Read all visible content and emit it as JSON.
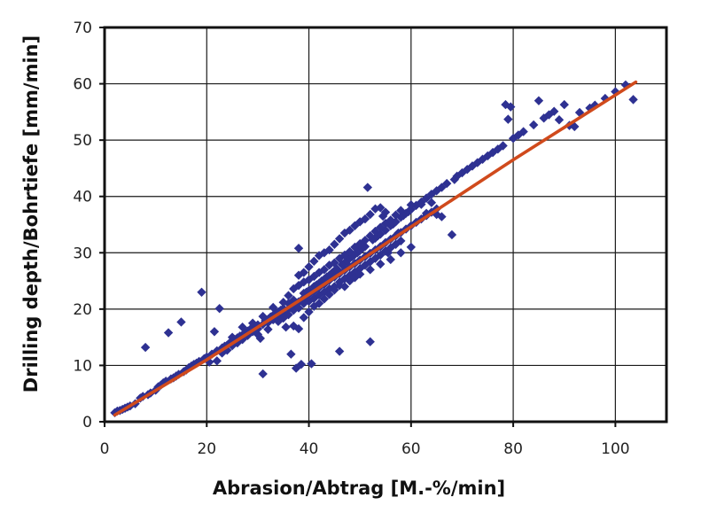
{
  "chart_data": {
    "type": "scatter",
    "title": "",
    "xlabel": "Abrasion/Abtrag [M.-%/min]",
    "ylabel": "Drilling depth/Bohrtiefe [mm/min]",
    "xlim": [
      0,
      110
    ],
    "ylim": [
      0,
      70
    ],
    "xticks": [
      0,
      20,
      40,
      60,
      80,
      100
    ],
    "yticks": [
      0,
      10,
      20,
      30,
      40,
      50,
      60,
      70
    ],
    "grid": true,
    "legend": "none",
    "marker_color": "#2e3192",
    "line_color": "#d04a1c",
    "series": [
      {
        "kind": "points",
        "points": [
          [
            2,
            1.6
          ],
          [
            2.5,
            1.9
          ],
          [
            3,
            2.0
          ],
          [
            3.5,
            2.2
          ],
          [
            4,
            2.4
          ],
          [
            4.5,
            2.6
          ],
          [
            5,
            2.8
          ],
          [
            6,
            3.2
          ],
          [
            7,
            4.2
          ],
          [
            7.5,
            4.5
          ],
          [
            8,
            13.2
          ],
          [
            8.5,
            4.8
          ],
          [
            9,
            5.1
          ],
          [
            10,
            5.6
          ],
          [
            10.5,
            6.2
          ],
          [
            11,
            6.5
          ],
          [
            11.5,
            6.9
          ],
          [
            12,
            7.2
          ],
          [
            12.5,
            15.8
          ],
          [
            13,
            7.6
          ],
          [
            13.5,
            7.8
          ],
          [
            14,
            8.1
          ],
          [
            14.5,
            8.4
          ],
          [
            15,
            17.7
          ],
          [
            15.5,
            8.9
          ],
          [
            16,
            9.2
          ],
          [
            16.5,
            9.6
          ],
          [
            17,
            9.9
          ],
          [
            17.5,
            10.2
          ],
          [
            18,
            10.4
          ],
          [
            18.5,
            10.7
          ],
          [
            19,
            23.0
          ],
          [
            19.5,
            11.2
          ],
          [
            20,
            11.5
          ],
          [
            20.5,
            10.6
          ],
          [
            21,
            12.0
          ],
          [
            21.5,
            16.0
          ],
          [
            22,
            12.6
          ],
          [
            22.5,
            20.1
          ],
          [
            23,
            13.1
          ],
          [
            23.5,
            13.4
          ],
          [
            24,
            13.6
          ],
          [
            24.5,
            14.0
          ],
          [
            25,
            14.3
          ],
          [
            25.5,
            14.6
          ],
          [
            26,
            14.9
          ],
          [
            26.5,
            15.2
          ],
          [
            27,
            15.4
          ],
          [
            27.5,
            15.8
          ],
          [
            28,
            16.1
          ],
          [
            28.5,
            16.4
          ],
          [
            29,
            16.6
          ],
          [
            29.5,
            17.0
          ],
          [
            30,
            17.2
          ],
          [
            30.5,
            14.8
          ],
          [
            31,
            8.5
          ],
          [
            31.5,
            18.0
          ],
          [
            32,
            18.2
          ],
          [
            32.5,
            18.6
          ],
          [
            33,
            18.9
          ],
          [
            33.5,
            19.2
          ],
          [
            34,
            19.5
          ],
          [
            34.5,
            19.8
          ],
          [
            35,
            20.1
          ],
          [
            35.5,
            16.8
          ],
          [
            36,
            21.0
          ],
          [
            36.5,
            12.0
          ],
          [
            37,
            21.6
          ],
          [
            37.5,
            9.5
          ],
          [
            38,
            30.8
          ],
          [
            38.5,
            10.2
          ],
          [
            39,
            22.8
          ],
          [
            39.5,
            23.0
          ],
          [
            40,
            23.3
          ],
          [
            40.5,
            10.3
          ],
          [
            41,
            24.0
          ],
          [
            41.5,
            24.3
          ],
          [
            42,
            24.6
          ],
          [
            42.5,
            25.0
          ],
          [
            43,
            25.3
          ],
          [
            43.5,
            25.7
          ],
          [
            44,
            26.0
          ],
          [
            44.5,
            26.4
          ],
          [
            45,
            26.8
          ],
          [
            45.5,
            27.1
          ],
          [
            46,
            12.5
          ],
          [
            46.5,
            27.9
          ],
          [
            47,
            28.2
          ],
          [
            47.5,
            28.6
          ],
          [
            48,
            29.0
          ],
          [
            48.5,
            29.3
          ],
          [
            49,
            29.7
          ],
          [
            49.5,
            30.0
          ],
          [
            50,
            30.4
          ],
          [
            50.5,
            30.8
          ],
          [
            51,
            31.1
          ],
          [
            51.5,
            41.6
          ],
          [
            52,
            14.2
          ],
          [
            52.5,
            32.3
          ],
          [
            53,
            32.6
          ],
          [
            53.5,
            33.0
          ],
          [
            54,
            33.3
          ],
          [
            54.5,
            36.5
          ],
          [
            55,
            34.0
          ],
          [
            55.5,
            30.0
          ],
          [
            56,
            34.8
          ],
          [
            56.5,
            35.1
          ],
          [
            57,
            35.5
          ],
          [
            57.5,
            33.5
          ],
          [
            58,
            36.3
          ],
          [
            58.5,
            36.6
          ],
          [
            59,
            37.0
          ],
          [
            59.5,
            37.3
          ],
          [
            60,
            37.7
          ],
          [
            61,
            38.4
          ],
          [
            62,
            39.0
          ],
          [
            63,
            39.7
          ],
          [
            64,
            40.4
          ],
          [
            65,
            41.0
          ],
          [
            66,
            41.6
          ],
          [
            67,
            42.3
          ],
          [
            68,
            33.2
          ],
          [
            68.5,
            43.0
          ],
          [
            69,
            43.6
          ],
          [
            70,
            44.2
          ],
          [
            71,
            44.8
          ],
          [
            72,
            45.4
          ],
          [
            73,
            46.0
          ],
          [
            74,
            46.6
          ],
          [
            75,
            47.2
          ],
          [
            76,
            47.8
          ],
          [
            77,
            48.4
          ],
          [
            78,
            49.0
          ],
          [
            78.5,
            56.3
          ],
          [
            79,
            53.7
          ],
          [
            79.5,
            55.9
          ],
          [
            80,
            50.3
          ],
          [
            81,
            50.9
          ],
          [
            82,
            51.5
          ],
          [
            84,
            52.7
          ],
          [
            85,
            57.0
          ],
          [
            86,
            53.9
          ],
          [
            87,
            54.5
          ],
          [
            88,
            55.1
          ],
          [
            89,
            53.6
          ],
          [
            90,
            56.3
          ],
          [
            91,
            52.6
          ],
          [
            92,
            52.4
          ],
          [
            93,
            54.9
          ],
          [
            95,
            55.7
          ],
          [
            96,
            56.2
          ],
          [
            98,
            57.4
          ],
          [
            100,
            58.6
          ],
          [
            102,
            59.8
          ],
          [
            103.5,
            57.2
          ],
          [
            22,
            10.8
          ],
          [
            23,
            12.2
          ],
          [
            24,
            12.7
          ],
          [
            25,
            13.5
          ],
          [
            26,
            14.0
          ],
          [
            27,
            14.6
          ],
          [
            28,
            15.3
          ],
          [
            29,
            16.0
          ],
          [
            30,
            16.5
          ],
          [
            31,
            17.3
          ],
          [
            32,
            17.6
          ],
          [
            33,
            18.1
          ],
          [
            34,
            18.8
          ],
          [
            35,
            19.3
          ],
          [
            36,
            20.0
          ],
          [
            37,
            20.8
          ],
          [
            38,
            21.3
          ],
          [
            39,
            22.0
          ],
          [
            40,
            22.6
          ],
          [
            41,
            23.2
          ],
          [
            42,
            23.8
          ],
          [
            43,
            24.4
          ],
          [
            44,
            25.1
          ],
          [
            45,
            25.7
          ],
          [
            46,
            26.3
          ],
          [
            47,
            26.9
          ],
          [
            48,
            27.5
          ],
          [
            49,
            28.1
          ],
          [
            50,
            28.7
          ],
          [
            51,
            29.3
          ],
          [
            52,
            29.9
          ],
          [
            53,
            30.5
          ],
          [
            54,
            31.1
          ],
          [
            55,
            31.8
          ],
          [
            56,
            32.4
          ],
          [
            57,
            33.0
          ],
          [
            58,
            33.6
          ],
          [
            59,
            34.2
          ],
          [
            60,
            34.8
          ],
          [
            61,
            35.4
          ],
          [
            62,
            36.0
          ],
          [
            63,
            36.6
          ],
          [
            64,
            37.2
          ],
          [
            65,
            37.8
          ],
          [
            25,
            15.0
          ],
          [
            27,
            16.8
          ],
          [
            29,
            17.5
          ],
          [
            31,
            18.7
          ],
          [
            33,
            20.3
          ],
          [
            35,
            21.2
          ],
          [
            36,
            22.4
          ],
          [
            37,
            23.6
          ],
          [
            38,
            24.2
          ],
          [
            39,
            24.8
          ],
          [
            40,
            25.2
          ],
          [
            41,
            25.8
          ],
          [
            42,
            26.5
          ],
          [
            43,
            27.0
          ],
          [
            44,
            27.8
          ],
          [
            45,
            28.2
          ],
          [
            46,
            29.0
          ],
          [
            47,
            29.6
          ],
          [
            48,
            30.2
          ],
          [
            49,
            31.0
          ],
          [
            50,
            31.6
          ],
          [
            51,
            32.2
          ],
          [
            52,
            33.0
          ],
          [
            53,
            33.8
          ],
          [
            54,
            34.5
          ],
          [
            55,
            35.2
          ],
          [
            56,
            35.8
          ],
          [
            57,
            36.7
          ],
          [
            58,
            37.5
          ],
          [
            60,
            38.5
          ],
          [
            62,
            38.6
          ],
          [
            63,
            37.0
          ],
          [
            65,
            36.8
          ],
          [
            66,
            36.4
          ],
          [
            64,
            38.9
          ],
          [
            37,
            19.8
          ],
          [
            38,
            20.2
          ],
          [
            39,
            21.0
          ],
          [
            40,
            21.4
          ],
          [
            41,
            21.9
          ],
          [
            42,
            22.5
          ],
          [
            43,
            23.0
          ],
          [
            44,
            23.6
          ],
          [
            45,
            24.0
          ],
          [
            46,
            24.8
          ],
          [
            47,
            25.4
          ],
          [
            48,
            26.0
          ],
          [
            49,
            26.6
          ],
          [
            50,
            27.2
          ],
          [
            51,
            27.8
          ],
          [
            52,
            28.4
          ],
          [
            53,
            29.0
          ],
          [
            54,
            29.6
          ],
          [
            55,
            30.3
          ],
          [
            56,
            30.9
          ],
          [
            57,
            31.5
          ],
          [
            58,
            32.1
          ],
          [
            38,
            26.0
          ],
          [
            39,
            26.5
          ],
          [
            40,
            27.5
          ],
          [
            41,
            28.5
          ],
          [
            42,
            29.5
          ],
          [
            43,
            30.0
          ],
          [
            44,
            30.5
          ],
          [
            45,
            31.5
          ],
          [
            46,
            32.5
          ],
          [
            47,
            33.5
          ],
          [
            48,
            34.0
          ],
          [
            49,
            34.8
          ],
          [
            50,
            35.5
          ],
          [
            51,
            36.0
          ],
          [
            52,
            36.8
          ],
          [
            53,
            37.8
          ],
          [
            54,
            38.0
          ],
          [
            55,
            37.2
          ],
          [
            30,
            15.5
          ],
          [
            32,
            16.4
          ],
          [
            34,
            17.8
          ],
          [
            35,
            18.4
          ],
          [
            36,
            19.0
          ],
          [
            37,
            17.0
          ],
          [
            38,
            16.5
          ],
          [
            39,
            18.5
          ],
          [
            40,
            19.5
          ],
          [
            41,
            20.5
          ],
          [
            42,
            21.0
          ],
          [
            43,
            21.8
          ],
          [
            44,
            22.6
          ],
          [
            45,
            23.4
          ],
          [
            46,
            24.2
          ],
          [
            47,
            24.0
          ],
          [
            48,
            25.0
          ],
          [
            49,
            25.6
          ],
          [
            50,
            26.2
          ],
          [
            52,
            27.0
          ],
          [
            54,
            28.0
          ],
          [
            56,
            28.8
          ],
          [
            58,
            30.0
          ],
          [
            60,
            31.0
          ]
        ]
      },
      {
        "kind": "line",
        "points": [
          [
            2,
            1.2
          ],
          [
            20,
            11.0
          ],
          [
            40,
            22.6
          ],
          [
            60,
            34.6
          ],
          [
            80,
            46.5
          ],
          [
            104,
            60.3
          ]
        ]
      }
    ]
  }
}
